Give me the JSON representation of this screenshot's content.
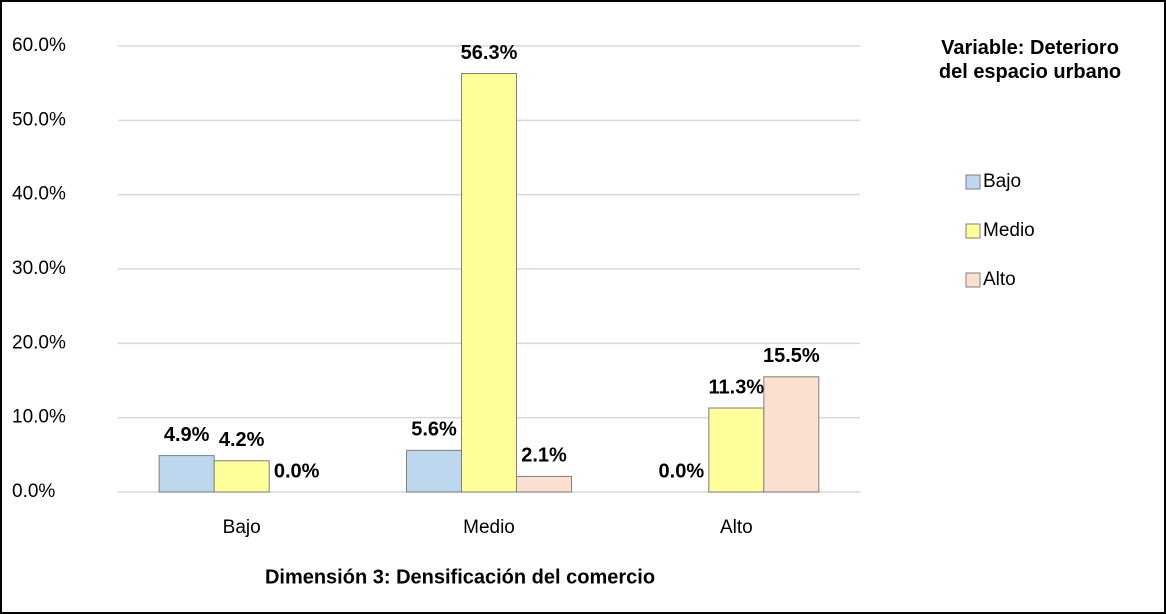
{
  "chart_data": {
    "type": "bar",
    "categories": [
      "Bajo",
      "Medio",
      "Alto"
    ],
    "series": [
      {
        "name": "Bajo",
        "color": "#bdd7ee",
        "values": [
          4.9,
          5.6,
          0.0
        ],
        "value_labels": [
          "4.9%",
          "5.6%",
          "0.0%"
        ]
      },
      {
        "name": "Medio",
        "color": "#ffff99",
        "values": [
          4.2,
          56.3,
          11.3
        ],
        "value_labels": [
          "4.2%",
          "56.3%",
          "11.3%"
        ]
      },
      {
        "name": "Alto",
        "color": "#fbe0d0",
        "values": [
          0.0,
          2.1,
          15.5
        ],
        "value_labels": [
          "0.0%",
          "2.1%",
          "15.5%"
        ]
      }
    ],
    "ylim": [
      0,
      60
    ],
    "yticks": [
      {
        "value": 0,
        "label": "0.0%"
      },
      {
        "value": 10,
        "label": "10.0%"
      },
      {
        "value": 20,
        "label": "20.0%"
      },
      {
        "value": 30,
        "label": "30.0%"
      },
      {
        "value": 40,
        "label": "40.0%"
      },
      {
        "value": 50,
        "label": "50.0%"
      },
      {
        "value": 60,
        "label": "60.0%"
      }
    ],
    "grid": true,
    "x_label": "Dimensión 3: Densificación del comercio",
    "legend_title": "Variable: Deterioro del espacio urbano",
    "legend_position": "right"
  }
}
